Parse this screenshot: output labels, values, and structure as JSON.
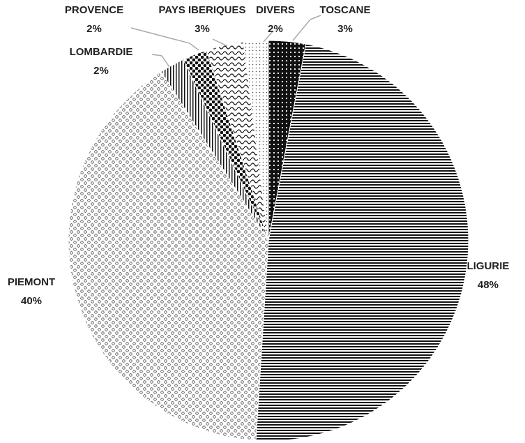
{
  "chart_data": {
    "type": "pie",
    "categories": [
      "TOSCANE",
      "LIGURIE",
      "PIEMONT",
      "LOMBARDIE",
      "PROVENCE",
      "PAYS IBERIQUES",
      "DIVERS"
    ],
    "values": [
      3,
      48,
      40,
      2,
      2,
      3,
      2
    ],
    "value_labels": [
      "3%",
      "48%",
      "40%",
      "2%",
      "2%",
      "3%",
      "2%"
    ]
  }
}
